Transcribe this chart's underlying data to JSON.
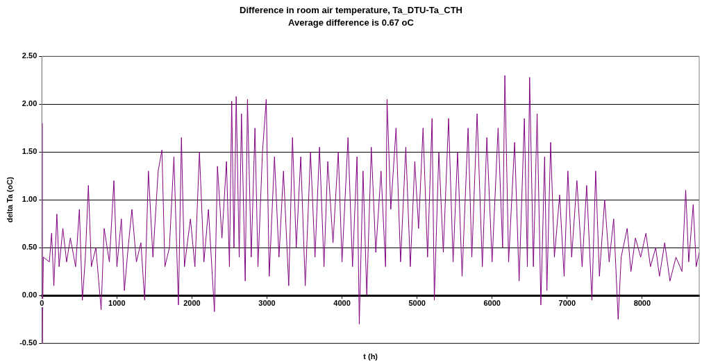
{
  "chart_data": {
    "type": "line",
    "title": "Difference in room air temperature, Ta_DTU-Ta_CTH",
    "subtitle": "Average difference is 0.67 oC",
    "xlabel": "t (h)",
    "ylabel": "delta Ta (oC)",
    "xlim": [
      0,
      8760
    ],
    "xticks": [
      0,
      1000,
      2000,
      3000,
      4000,
      5000,
      6000,
      7000,
      8000
    ],
    "ylim": [
      -0.5,
      2.5
    ],
    "yticks": [
      {
        "value": -0.5,
        "label": "-0.50"
      },
      {
        "value": 0,
        "label": "0.00"
      },
      {
        "value": 0.5,
        "label": "0.50"
      },
      {
        "value": 1,
        "label": "1.00"
      },
      {
        "value": 1.5,
        "label": "1.50"
      },
      {
        "value": 2,
        "label": "2.00"
      },
      {
        "value": 2.5,
        "label": "2.50"
      }
    ],
    "grid": "y",
    "legend": false,
    "marker": "none",
    "line_style": "solid",
    "x": [
      0,
      5,
      20,
      100,
      130,
      160,
      200,
      230,
      280,
      330,
      380,
      450,
      500,
      540,
      580,
      620,
      660,
      720,
      790,
      830,
      900,
      960,
      1000,
      1060,
      1100,
      1150,
      1200,
      1260,
      1320,
      1370,
      1420,
      1480,
      1550,
      1600,
      1640,
      1700,
      1760,
      1820,
      1860,
      1900,
      1980,
      2040,
      2100,
      2160,
      2220,
      2300,
      2340,
      2400,
      2460,
      2500,
      2530,
      2560,
      2590,
      2630,
      2660,
      2710,
      2740,
      2790,
      2840,
      2880,
      2940,
      2990,
      3030,
      3100,
      3160,
      3220,
      3290,
      3340,
      3390,
      3450,
      3510,
      3580,
      3640,
      3700,
      3760,
      3810,
      3880,
      3950,
      4000,
      4080,
      4140,
      4200,
      4230,
      4280,
      4330,
      4390,
      4450,
      4520,
      4580,
      4600,
      4650,
      4720,
      4780,
      4850,
      4910,
      4970,
      5020,
      5080,
      5140,
      5200,
      5230,
      5290,
      5350,
      5420,
      5480,
      5540,
      5600,
      5680,
      5730,
      5800,
      5870,
      5930,
      6000,
      6080,
      6140,
      6170,
      6220,
      6300,
      6360,
      6430,
      6470,
      6500,
      6550,
      6600,
      6650,
      6700,
      6730,
      6780,
      6830,
      6900,
      6960,
      7010,
      7060,
      7130,
      7200,
      7260,
      7330,
      7380,
      7430,
      7500,
      7560,
      7620,
      7680,
      7720,
      7800,
      7850,
      7910,
      7980,
      8050,
      8110,
      8180,
      8230,
      8300,
      8370,
      8450,
      8530,
      8580,
      8620,
      8680,
      8720,
      8760
    ],
    "series": [
      {
        "color": "#800080",
        "values": [
          1.8,
          -0.5,
          0.4,
          0.35,
          0.65,
          0.1,
          0.85,
          0.3,
          0.7,
          0.35,
          0.6,
          0.3,
          0.9,
          -0.05,
          0.4,
          1.15,
          0.3,
          0.5,
          -0.15,
          0.7,
          0.35,
          1.2,
          0.3,
          0.8,
          0.05,
          0.5,
          0.9,
          0.35,
          0.55,
          -0.05,
          1.3,
          0.4,
          1.3,
          1.52,
          0.3,
          0.5,
          1.45,
          -0.1,
          1.65,
          0.3,
          0.8,
          0.3,
          1.5,
          0.35,
          0.9,
          -0.17,
          1.35,
          0.6,
          1.4,
          0.3,
          2.03,
          0.5,
          2.08,
          0.4,
          1.9,
          0.15,
          2.05,
          0.4,
          1.75,
          0.3,
          1.5,
          2.05,
          0.2,
          1.45,
          0.4,
          1.3,
          0.1,
          1.65,
          0.5,
          1.45,
          0.1,
          1.5,
          0.4,
          1.55,
          0.3,
          1.4,
          0.55,
          1.5,
          0.35,
          1.65,
          0.3,
          1.45,
          -0.3,
          1.3,
          0.0,
          1.55,
          0.45,
          1.3,
          0.3,
          2.05,
          0.9,
          1.75,
          0.35,
          1.55,
          0.3,
          1.4,
          0.7,
          1.75,
          0.4,
          1.85,
          -0.05,
          1.5,
          0.45,
          1.85,
          0.35,
          1.5,
          0.2,
          1.75,
          0.4,
          1.9,
          0.3,
          1.65,
          0.35,
          1.75,
          0.5,
          2.3,
          0.35,
          1.6,
          0.15,
          1.85,
          0.3,
          2.28,
          0.3,
          1.9,
          -0.1,
          1.45,
          0.05,
          1.6,
          0.4,
          1.05,
          0.2,
          1.3,
          0.4,
          1.2,
          0.3,
          1.15,
          -0.05,
          1.3,
          0.2,
          1.0,
          0.35,
          0.8,
          -0.25,
          0.4,
          0.7,
          0.25,
          0.6,
          0.4,
          0.65,
          0.3,
          0.5,
          0.2,
          0.55,
          0.15,
          0.4,
          0.25,
          1.1,
          0.35,
          0.95,
          0.3,
          0.45
        ]
      }
    ]
  }
}
